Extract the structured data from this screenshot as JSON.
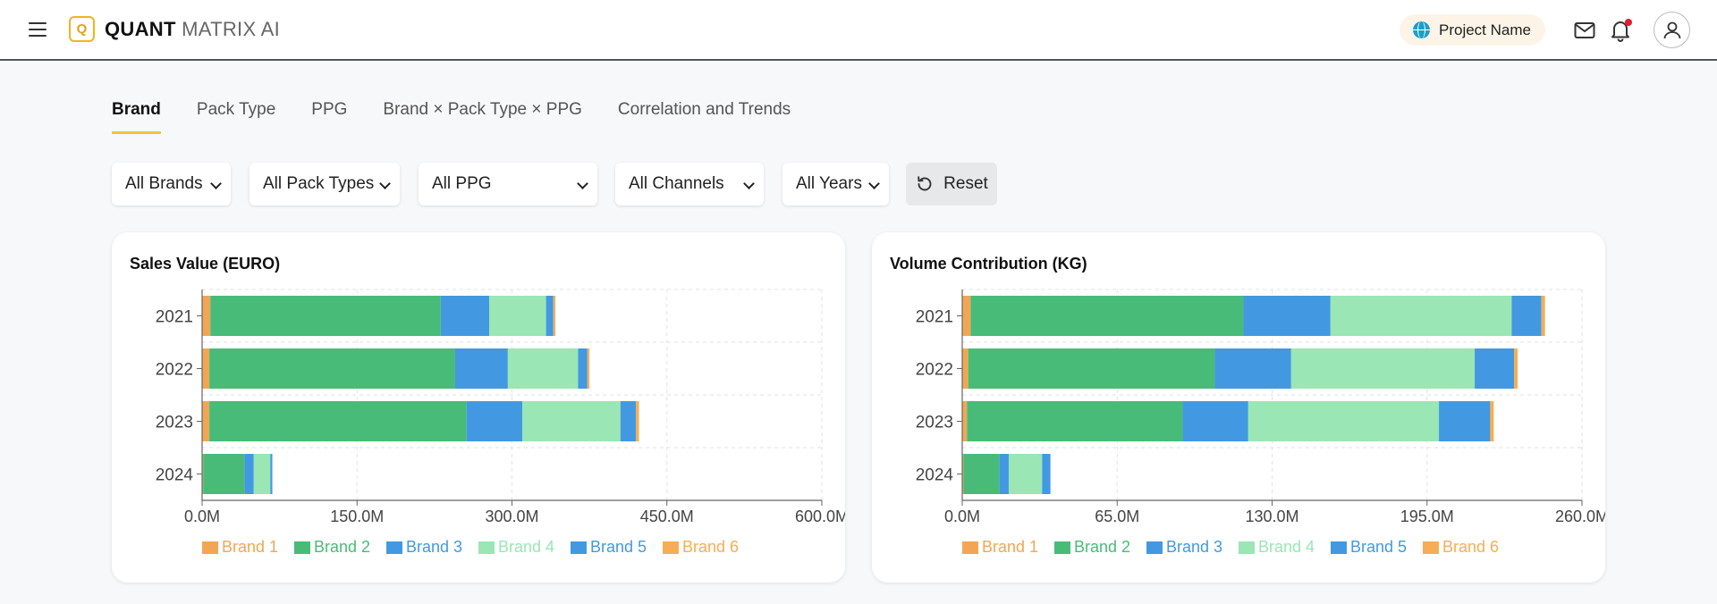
{
  "header": {
    "logo_letter": "Q",
    "brand_strong": "QUANT",
    "brand_light": "MATRIX AI",
    "project_name": "Project Name"
  },
  "tabs": [
    "Brand",
    "Pack Type",
    "PPG",
    "Brand × Pack Type × PPG",
    "Correlation and Trends"
  ],
  "active_tab": 0,
  "filters": {
    "brand": "All Brands",
    "pack_type": "All Pack Types",
    "ppg": "All PPG",
    "channel": "All Channels",
    "year": "All Years",
    "reset_label": "Reset"
  },
  "colors": {
    "accent": "#f2c33a",
    "brand1": "#f2a654",
    "brand2": "#48bb78",
    "brand3": "#4299e1",
    "brand4": "#9ae6b4",
    "brand5": "#4299e1",
    "brand6": "#f6ad55"
  },
  "chart_data": [
    {
      "type": "bar",
      "orientation": "horizontal",
      "stacked": true,
      "title": "Sales Value (EURO)",
      "categories": [
        "2021",
        "2022",
        "2023",
        "2024"
      ],
      "xlim": [
        0,
        600
      ],
      "x_ticks": [
        "0.0M",
        "150.0M",
        "300.0M",
        "450.0M",
        "600.0M"
      ],
      "legend": "bottom",
      "series": [
        {
          "name": "Brand 1",
          "color": "#f2a654",
          "values": [
            8,
            7,
            7,
            1
          ]
        },
        {
          "name": "Brand 2",
          "color": "#48bb78",
          "values": [
            223,
            238,
            249,
            40
          ]
        },
        {
          "name": "Brand 3",
          "color": "#4299e1",
          "values": [
            47,
            51,
            54,
            9
          ]
        },
        {
          "name": "Brand 4",
          "color": "#9ae6b4",
          "values": [
            55,
            68,
            95,
            16
          ]
        },
        {
          "name": "Brand 5",
          "color": "#4299e1",
          "values": [
            7,
            9,
            15,
            2
          ]
        },
        {
          "name": "Brand 6",
          "color": "#f6ad55",
          "values": [
            2,
            2,
            3,
            0
          ]
        }
      ]
    },
    {
      "type": "bar",
      "orientation": "horizontal",
      "stacked": true,
      "title": "Volume Contribution (KG)",
      "categories": [
        "2021",
        "2022",
        "2023",
        "2024"
      ],
      "xlim": [
        0,
        260
      ],
      "x_ticks": [
        "0.0M",
        "65.0M",
        "130.0M",
        "195.0M",
        "260.0M"
      ],
      "legend": "bottom",
      "series": [
        {
          "name": "Brand 1",
          "color": "#f2a654",
          "values": [
            3.5,
            2.5,
            2.0,
            0.5
          ]
        },
        {
          "name": "Brand 2",
          "color": "#48bb78",
          "values": [
            114.5,
            103.5,
            90.5,
            15.0
          ]
        },
        {
          "name": "Brand 3",
          "color": "#4299e1",
          "values": [
            36.5,
            32.0,
            27.5,
            4.0
          ]
        },
        {
          "name": "Brand 4",
          "color": "#9ae6b4",
          "values": [
            76.0,
            77.0,
            80.0,
            14.0
          ]
        },
        {
          "name": "Brand 5",
          "color": "#4299e1",
          "values": [
            12.5,
            16.5,
            21.5,
            3.5
          ]
        },
        {
          "name": "Brand 6",
          "color": "#f6ad55",
          "values": [
            1.5,
            1.5,
            1.5,
            0.0
          ]
        }
      ]
    }
  ]
}
